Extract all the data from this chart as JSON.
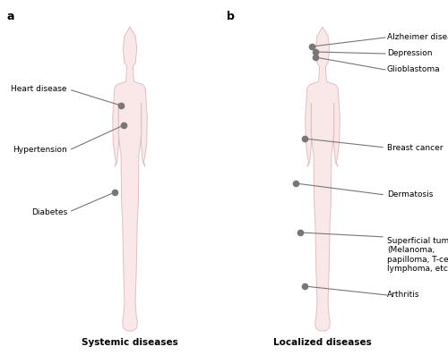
{
  "fig_width": 5.0,
  "fig_height": 3.97,
  "dpi": 100,
  "bg_color": "#ffffff",
  "silhouette_fill": "#fae8e8",
  "silhouette_edge": "#e0c0c0",
  "dot_color": "#777777",
  "line_color": "#777777",
  "label_fontsize": 6.5,
  "subtitle_fontsize": 7.5,
  "panel_label_fontsize": 9,
  "panel_a_label": "a",
  "panel_b_label": "b",
  "subtitle_a": "Systemic diseases",
  "subtitle_b": "Localized diseases"
}
